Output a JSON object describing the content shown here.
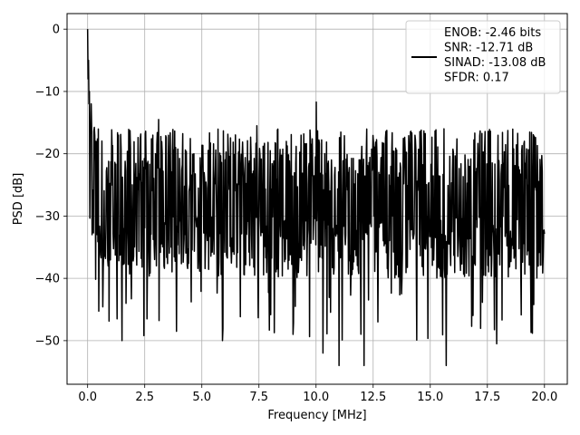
{
  "chart_data": {
    "type": "line",
    "title": "",
    "xlabel": "Frequency [MHz]",
    "ylabel": "PSD [dB]",
    "xlim": [
      -0.9,
      21.0
    ],
    "ylim": [
      -57,
      2.5
    ],
    "xticks": [
      0.0,
      2.5,
      5.0,
      7.5,
      10.0,
      12.5,
      15.0,
      17.5,
      20.0
    ],
    "xtick_labels": [
      "0.0",
      "2.5",
      "5.0",
      "7.5",
      "10.0",
      "12.5",
      "15.0",
      "17.5",
      "20.0"
    ],
    "yticks": [
      0,
      -10,
      -20,
      -30,
      -40,
      -50
    ],
    "ytick_labels": [
      "0",
      "−10",
      "−20",
      "−30",
      "−40",
      "−50"
    ],
    "grid": true,
    "legend_position": "top-right",
    "series": [
      {
        "name": "ENOB: -2.46 bits\nSNR: -12.71 dB\nSINAD: -13.08 dB\nSFDR: 0.17",
        "legend_lines": [
          "ENOB: -2.46 bits",
          "SNR: -12.71 dB",
          "SINAD: -13.08 dB",
          "SFDR: 0.17"
        ],
        "color": "#000000",
        "x_range": [
          0.0,
          20.0
        ],
        "n_points": 1024,
        "noise_floor_mean_db": -28,
        "noise_floor_min_db": -54,
        "noise_floor_max_db": -15,
        "peaks": [
          {
            "x": 0.0,
            "y": 0.0
          },
          {
            "x": 0.05,
            "y": -10.0
          },
          {
            "x": 0.15,
            "y": -12.0
          },
          {
            "x": 3.1,
            "y": -14.5
          },
          {
            "x": 10.0,
            "y": -11.7
          },
          {
            "x": 7.4,
            "y": -15.5
          },
          {
            "x": 15.6,
            "y": -16.0
          }
        ],
        "dips": [
          {
            "x": 1.3,
            "y": -46.5
          },
          {
            "x": 1.5,
            "y": -50.0
          },
          {
            "x": 3.9,
            "y": -48.5
          },
          {
            "x": 5.9,
            "y": -50.0
          },
          {
            "x": 9.0,
            "y": -49.0
          },
          {
            "x": 10.3,
            "y": -52.0
          },
          {
            "x": 11.0,
            "y": -54.0
          },
          {
            "x": 12.1,
            "y": -54.0
          },
          {
            "x": 15.7,
            "y": -54.0
          },
          {
            "x": 17.9,
            "y": -50.5
          }
        ]
      }
    ]
  }
}
